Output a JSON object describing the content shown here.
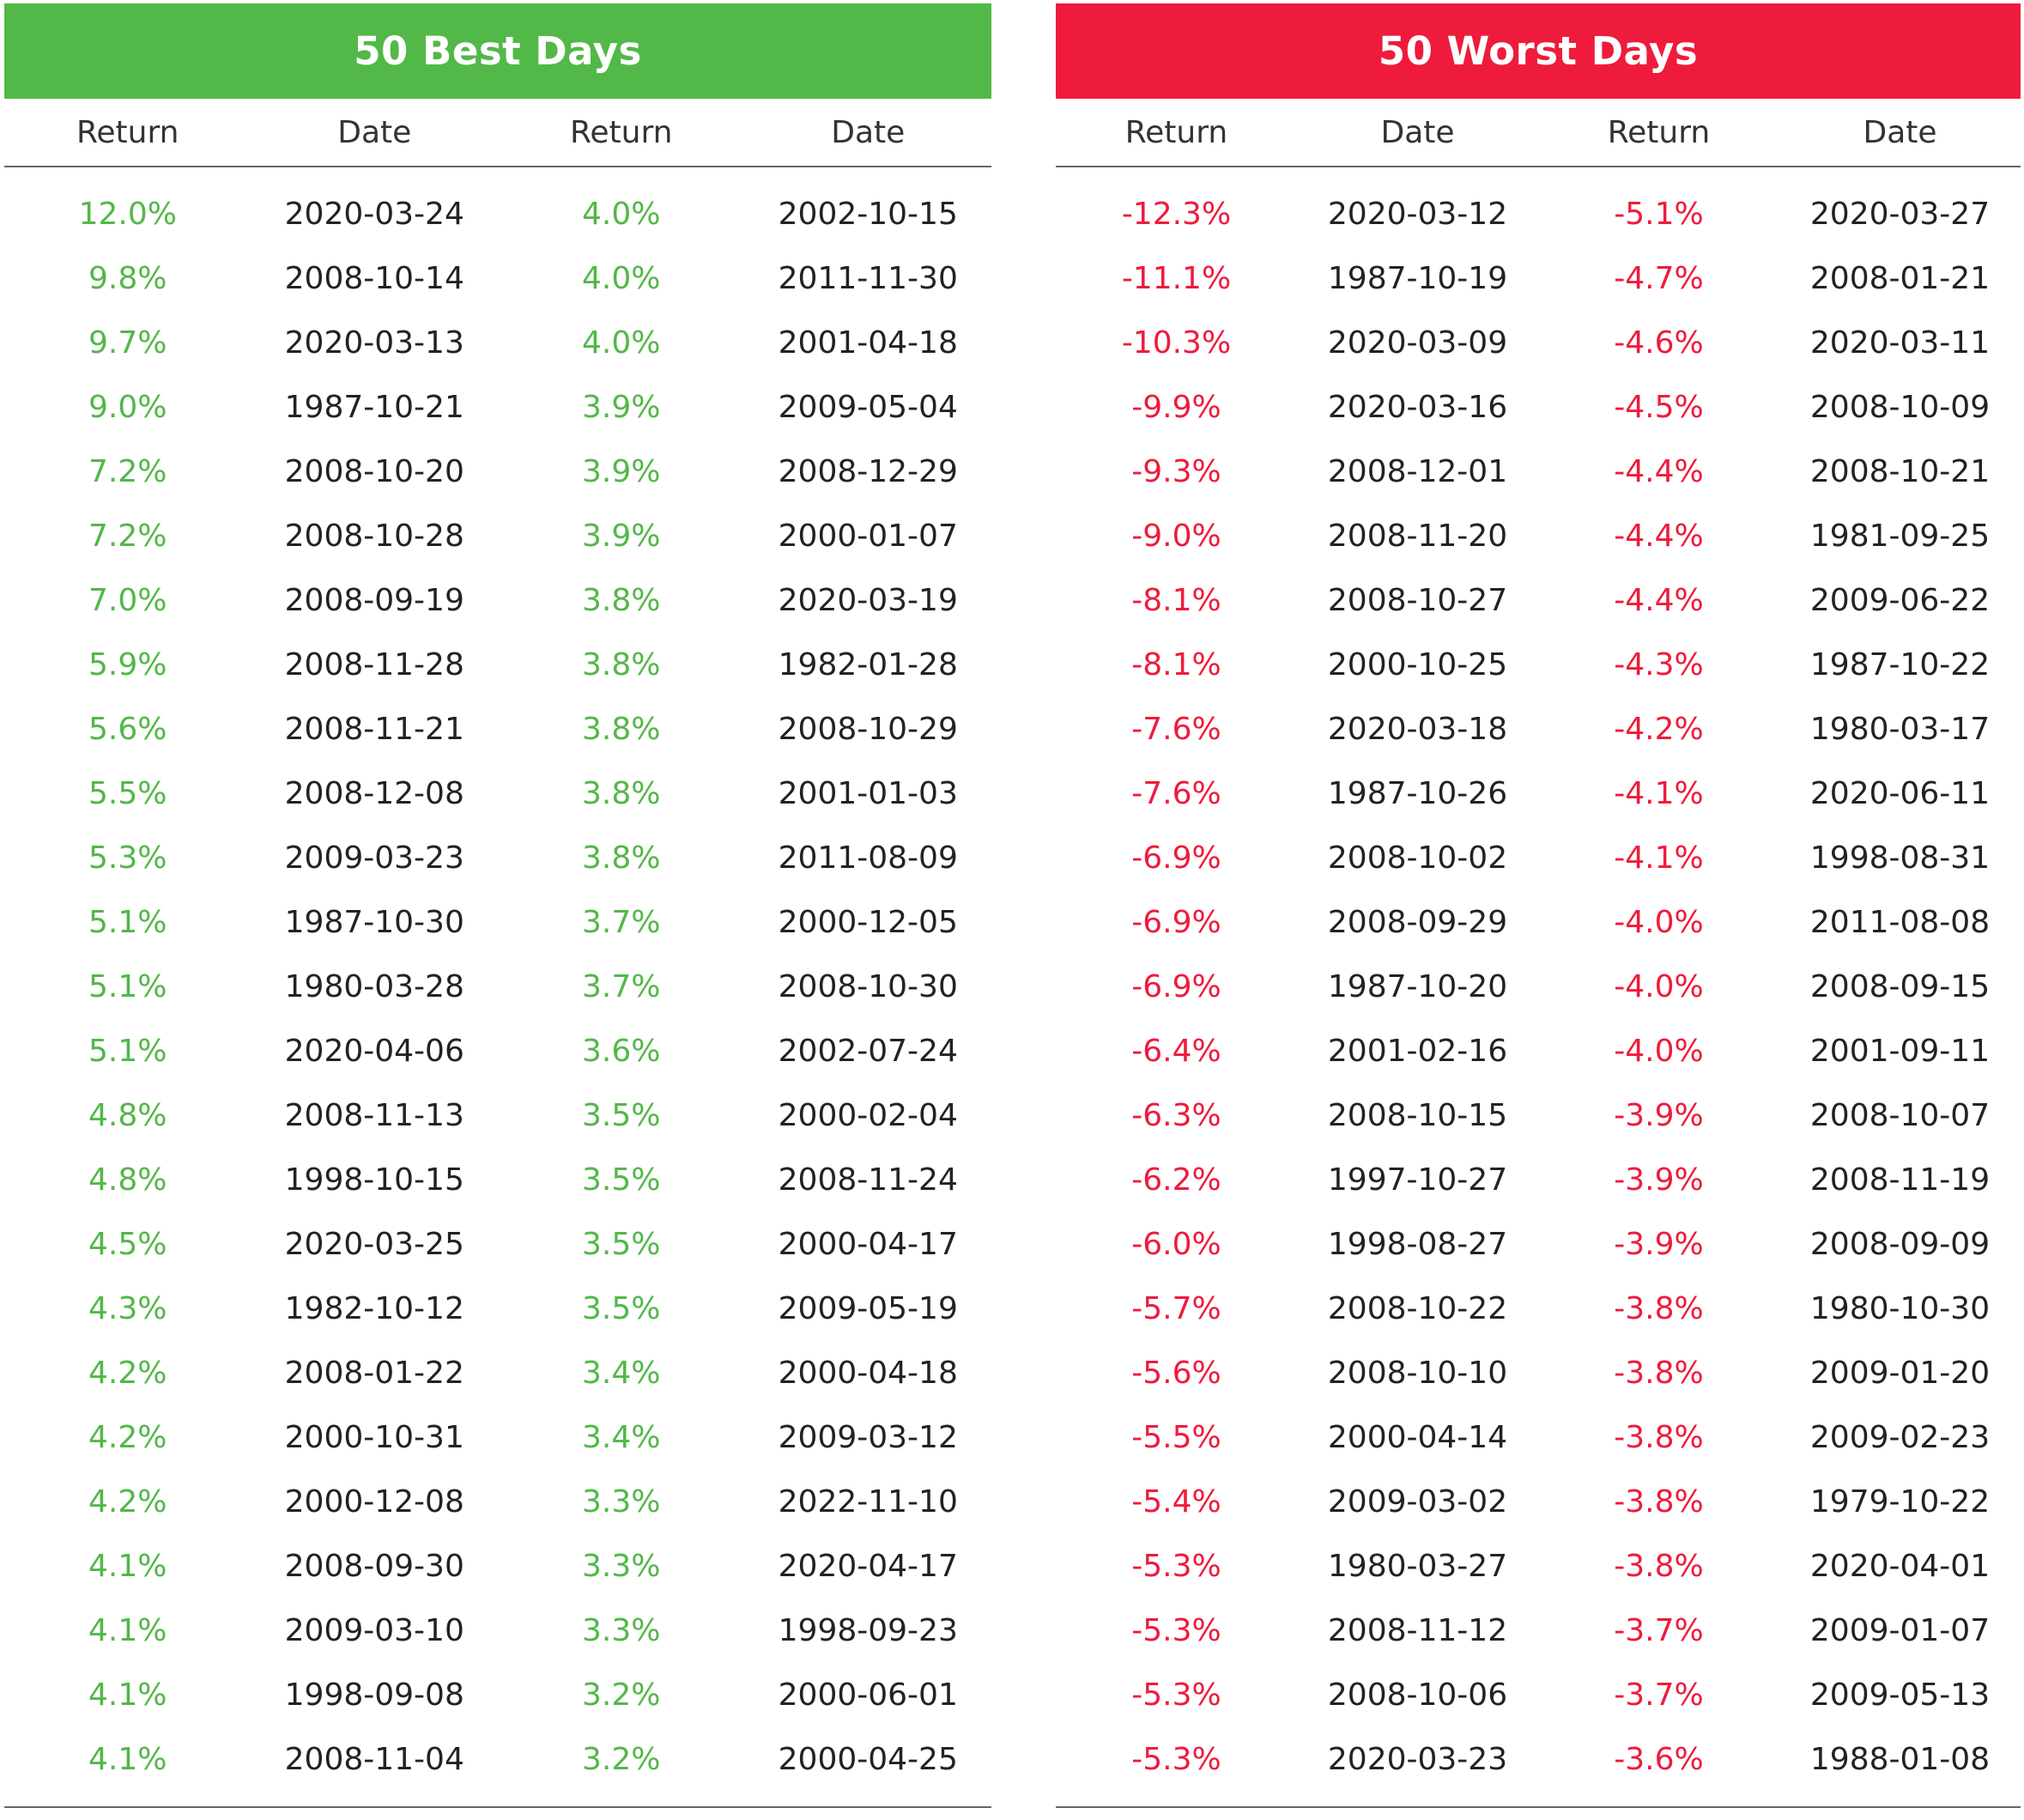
{
  "colors": {
    "best": "#52B848",
    "worst": "#EE1B3C"
  },
  "best": {
    "title": "50 Best Days",
    "headers": [
      "Return",
      "Date",
      "Return",
      "Date"
    ],
    "rows": [
      [
        "12.0%",
        "2020-03-24",
        "4.0%",
        "2002-10-15"
      ],
      [
        "9.8%",
        "2008-10-14",
        "4.0%",
        "2011-11-30"
      ],
      [
        "9.7%",
        "2020-03-13",
        "4.0%",
        "2001-04-18"
      ],
      [
        "9.0%",
        "1987-10-21",
        "3.9%",
        "2009-05-04"
      ],
      [
        "7.2%",
        "2008-10-20",
        "3.9%",
        "2008-12-29"
      ],
      [
        "7.2%",
        "2008-10-28",
        "3.9%",
        "2000-01-07"
      ],
      [
        "7.0%",
        "2008-09-19",
        "3.8%",
        "2020-03-19"
      ],
      [
        "5.9%",
        "2008-11-28",
        "3.8%",
        "1982-01-28"
      ],
      [
        "5.6%",
        "2008-11-21",
        "3.8%",
        "2008-10-29"
      ],
      [
        "5.5%",
        "2008-12-08",
        "3.8%",
        "2001-01-03"
      ],
      [
        "5.3%",
        "2009-03-23",
        "3.8%",
        "2011-08-09"
      ],
      [
        "5.1%",
        "1987-10-30",
        "3.7%",
        "2000-12-05"
      ],
      [
        "5.1%",
        "1980-03-28",
        "3.7%",
        "2008-10-30"
      ],
      [
        "5.1%",
        "2020-04-06",
        "3.6%",
        "2002-07-24"
      ],
      [
        "4.8%",
        "2008-11-13",
        "3.5%",
        "2000-02-04"
      ],
      [
        "4.8%",
        "1998-10-15",
        "3.5%",
        "2008-11-24"
      ],
      [
        "4.5%",
        "2020-03-25",
        "3.5%",
        "2000-04-17"
      ],
      [
        "4.3%",
        "1982-10-12",
        "3.5%",
        "2009-05-19"
      ],
      [
        "4.2%",
        "2008-01-22",
        "3.4%",
        "2000-04-18"
      ],
      [
        "4.2%",
        "2000-10-31",
        "3.4%",
        "2009-03-12"
      ],
      [
        "4.2%",
        "2000-12-08",
        "3.3%",
        "2022-11-10"
      ],
      [
        "4.1%",
        "2008-09-30",
        "3.3%",
        "2020-04-17"
      ],
      [
        "4.1%",
        "2009-03-10",
        "3.3%",
        "1998-09-23"
      ],
      [
        "4.1%",
        "1998-09-08",
        "3.2%",
        "2000-06-01"
      ],
      [
        "4.1%",
        "2008-11-04",
        "3.2%",
        "2000-04-25"
      ]
    ]
  },
  "worst": {
    "title": "50 Worst Days",
    "headers": [
      "Return",
      "Date",
      "Return",
      "Date"
    ],
    "rows": [
      [
        "-12.3%",
        "2020-03-12",
        "-5.1%",
        "2020-03-27"
      ],
      [
        "-11.1%",
        "1987-10-19",
        "-4.7%",
        "2008-01-21"
      ],
      [
        "-10.3%",
        "2020-03-09",
        "-4.6%",
        "2020-03-11"
      ],
      [
        "-9.9%",
        "2020-03-16",
        "-4.5%",
        "2008-10-09"
      ],
      [
        "-9.3%",
        "2008-12-01",
        "-4.4%",
        "2008-10-21"
      ],
      [
        "-9.0%",
        "2008-11-20",
        "-4.4%",
        "1981-09-25"
      ],
      [
        "-8.1%",
        "2008-10-27",
        "-4.4%",
        "2009-06-22"
      ],
      [
        "-8.1%",
        "2000-10-25",
        "-4.3%",
        "1987-10-22"
      ],
      [
        "-7.6%",
        "2020-03-18",
        "-4.2%",
        "1980-03-17"
      ],
      [
        "-7.6%",
        "1987-10-26",
        "-4.1%",
        "2020-06-11"
      ],
      [
        "-6.9%",
        "2008-10-02",
        "-4.1%",
        "1998-08-31"
      ],
      [
        "-6.9%",
        "2008-09-29",
        "-4.0%",
        "2011-08-08"
      ],
      [
        "-6.9%",
        "1987-10-20",
        "-4.0%",
        "2008-09-15"
      ],
      [
        "-6.4%",
        "2001-02-16",
        "-4.0%",
        "2001-09-11"
      ],
      [
        "-6.3%",
        "2008-10-15",
        "-3.9%",
        "2008-10-07"
      ],
      [
        "-6.2%",
        "1997-10-27",
        "-3.9%",
        "2008-11-19"
      ],
      [
        "-6.0%",
        "1998-08-27",
        "-3.9%",
        "2008-09-09"
      ],
      [
        "-5.7%",
        "2008-10-22",
        "-3.8%",
        "1980-10-30"
      ],
      [
        "-5.6%",
        "2008-10-10",
        "-3.8%",
        "2009-01-20"
      ],
      [
        "-5.5%",
        "2000-04-14",
        "-3.8%",
        "2009-02-23"
      ],
      [
        "-5.4%",
        "2009-03-02",
        "-3.8%",
        "1979-10-22"
      ],
      [
        "-5.3%",
        "1980-03-27",
        "-3.8%",
        "2020-04-01"
      ],
      [
        "-5.3%",
        "2008-11-12",
        "-3.7%",
        "2009-01-07"
      ],
      [
        "-5.3%",
        "2008-10-06",
        "-3.7%",
        "2009-05-13"
      ],
      [
        "-5.3%",
        "2020-03-23",
        "-3.6%",
        "1988-01-08"
      ]
    ]
  }
}
